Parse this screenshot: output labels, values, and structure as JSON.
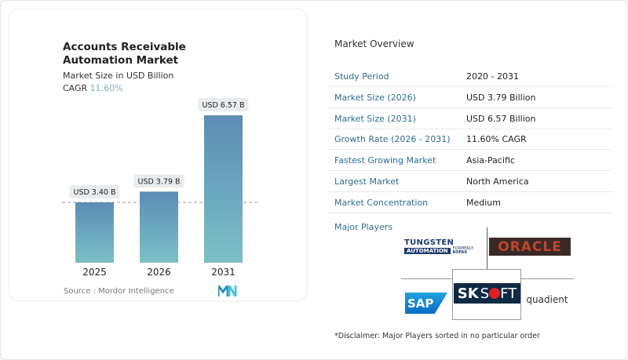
{
  "chart_data": {
    "type": "bar",
    "title": "Accounts Receivable Automation Market",
    "subtitle": "Market Size in USD Billion",
    "cagr_label": "CAGR",
    "cagr_value": "11.60%",
    "categories": [
      "2025",
      "2026",
      "2031"
    ],
    "values": [
      3.4,
      3.79,
      6.57
    ],
    "data_labels": [
      "USD 3.40 B",
      "USD 3.79 B",
      "USD 6.57 B"
    ],
    "reference_line": "dashed at 2025 value",
    "colors": {
      "bar_top": "#5b8db5",
      "bar_bottom": "#7dbfc6",
      "cagr": "#7fb0c4"
    },
    "source": "Source :  Mordor Intelligence"
  },
  "overview": {
    "title": "Market Overview",
    "rows": [
      {
        "key": "Study Period",
        "value": "2020 - 2031"
      },
      {
        "key": "Market Size (2026)",
        "value": "USD 3.79 Billion"
      },
      {
        "key": "Market Size (2031)",
        "value": "USD 6.57 Billion"
      },
      {
        "key": "Growth Rate (2026 - 2031)",
        "value": "11.60% CAGR"
      },
      {
        "key": "Fastest Growing Market",
        "value": "Asia-Pacific"
      },
      {
        "key": "Largest Market",
        "value": "North America"
      },
      {
        "key": "Market Concentration",
        "value": "Medium"
      }
    ],
    "major_players_label": "Major Players",
    "players": [
      "Tungsten Automation (formerly Kofax)",
      "Oracle",
      "SAP",
      "SKSOFT",
      "Quadient"
    ],
    "logo_text": {
      "tungsten": "TUNGSTEN",
      "automation": "AUTOMATION",
      "formerly": "FORMERLY",
      "kofax": "KOFAX",
      "oracle": "ORACLE",
      "sap": "SAP",
      "sk": "SK",
      "s": "S",
      "ft": "FT",
      "quadient": "quadient"
    },
    "disclaimer": "*Disclaimer: Major Players sorted in no particular order"
  }
}
